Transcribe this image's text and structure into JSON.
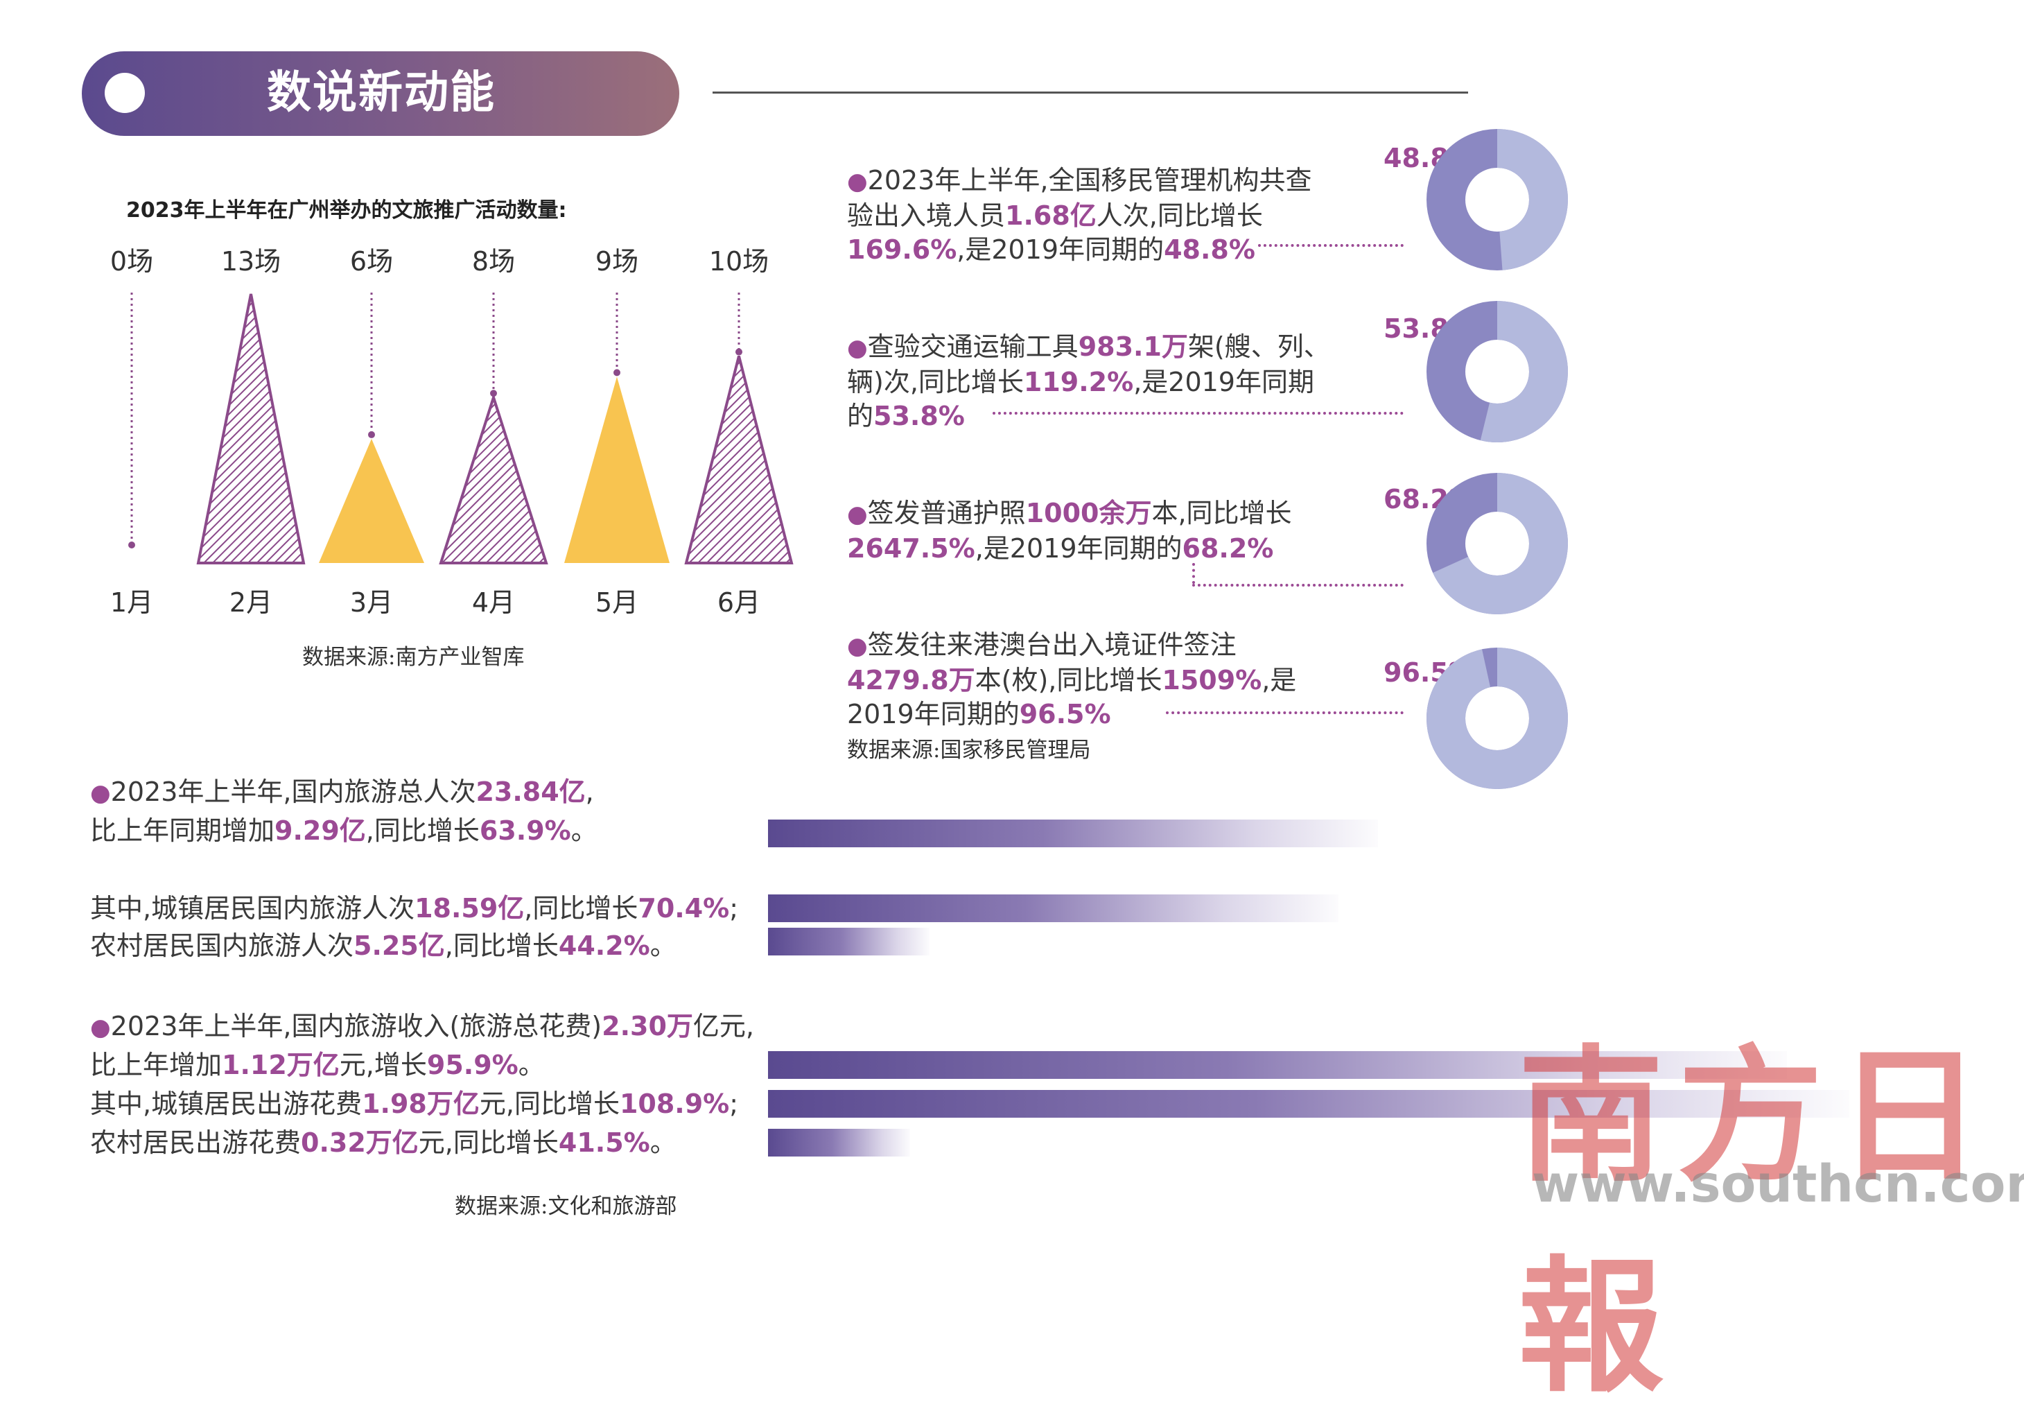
{
  "header": {
    "title": "数说新动能"
  },
  "chart_data": {
    "type": "bar",
    "title": "2023年上半年在广州举办的文旅推广活动数量:",
    "categories": [
      "1月",
      "2月",
      "3月",
      "4月",
      "5月",
      "6月"
    ],
    "values": [
      0,
      13,
      6,
      8,
      9,
      10
    ],
    "value_labels": [
      "0场",
      "13场",
      "6场",
      "8场",
      "9场",
      "10场"
    ],
    "styles": [
      "none",
      "hatched",
      "solid",
      "hatched",
      "solid",
      "hatched"
    ],
    "colors": {
      "hatched": "#8b4a8a",
      "solid": "#f8c450"
    },
    "source": "数据来源:南方产业智库"
  },
  "immigration": {
    "items": [
      {
        "pct": "48.8%",
        "fraction": 0.488,
        "parts": [
          "2023年上半年,全国移民管理机构共查验出入境人员",
          "1.68亿",
          "人次,同比增长",
          "169.6%",
          ",是2019年同期的",
          "48.8%"
        ]
      },
      {
        "pct": "53.8%",
        "fraction": 0.538,
        "parts": [
          "查验交通运输工具",
          "983.1万",
          "架(艘、列、辆)次,同比增长",
          "119.2%",
          ",是2019年同期的",
          "53.8%"
        ]
      },
      {
        "pct": "68.2%",
        "fraction": 0.682,
        "parts": [
          "签发普通护照",
          "1000余万",
          "本,同比增长",
          "2647.5%",
          ",是2019年同期的",
          "68.2%"
        ]
      },
      {
        "pct": "96.5%",
        "fraction": 0.965,
        "parts": [
          "签发往来港澳台出入境证件签注",
          "4279.8万",
          "本(枚),同比增长",
          "1509%",
          ",是2019年同期的",
          "96.5%"
        ]
      }
    ],
    "donut_colors": {
      "dark": "#8b88c2",
      "light": "#b3b9dd"
    },
    "source": "数据来源:国家移民管理局"
  },
  "tourism": {
    "l1a": "2023年上半年,国内旅游总人次",
    "l1a_v": "23.84亿",
    "l1a_end": ",",
    "l1b": "比上年同期增加",
    "l1b_v": "9.29亿",
    "l1b_m": ",同比增长",
    "l1b_v2": "63.9%",
    "l1b_end": "。",
    "l2a": "其中,城镇居民国内旅游人次",
    "l2a_v": "18.59亿",
    "l2a_m": ",同比增长",
    "l2a_v2": "70.4%",
    "l2a_end": ";",
    "l2b": "农村居民国内旅游人次",
    "l2b_v": "5.25亿",
    "l2b_m": ",同比增长",
    "l2b_v2": "44.2%",
    "l2b_end": "。",
    "l3a": "2023年上半年,国内旅游收入(旅游总花费)",
    "l3a_v": "2.30万",
    "l3a_end": "亿元,",
    "l3b": "比上年增加",
    "l3b_v": "1.12万亿",
    "l3b_m": "元,增长",
    "l3b_v2": "95.9%",
    "l3b_end": "。",
    "l3c": "其中,城镇居民出游花费",
    "l3c_v": "1.98万亿",
    "l3c_m": "元,同比增长",
    "l3c_v2": "108.9%",
    "l3c_end": ";",
    "l3d": "农村居民出游花费",
    "l3d_v": "0.32万亿",
    "l3d_m": "元,同比增长",
    "l3d_v2": "41.5%",
    "l3d_end": "。",
    "bars_people": [
      23.84,
      18.59,
      5.25
    ],
    "bars_spend": [
      2.3,
      1.98,
      0.32
    ],
    "source": "数据来源:文化和旅游部"
  },
  "watermark": {
    "logo": "南方日報",
    "url": "www.southcn.com"
  }
}
